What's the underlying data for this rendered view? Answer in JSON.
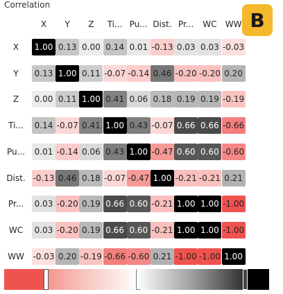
{
  "panel": {
    "title": "Correlation",
    "badge": "B"
  },
  "matrix": {
    "labels": [
      "X",
      "Y",
      "Z",
      "Ti...",
      "Pu...",
      "Dist.",
      "Pr...",
      "WC",
      "WW"
    ],
    "values": [
      [
        "1.00",
        "0.13",
        "0.00",
        "0.14",
        "0.01",
        "-0.13",
        "0.03",
        "0.03",
        "-0.03"
      ],
      [
        "0.13",
        "1.00",
        "0.11",
        "-0.07",
        "-0.14",
        "0.46",
        "-0.20",
        "-0.20",
        "0.20"
      ],
      [
        "0.00",
        "0.11",
        "1.00",
        "0.41",
        "0.06",
        "0.18",
        "0.19",
        "0.19",
        "-0.19"
      ],
      [
        "0.14",
        "-0.07",
        "0.41",
        "1.00",
        "0.43",
        "-0.07",
        "0.66",
        "0.66",
        "-0.66"
      ],
      [
        "0.01",
        "-0.14",
        "0.06",
        "0.43",
        "1.00",
        "-0.47",
        "0.60",
        "0.60",
        "-0.60"
      ],
      [
        "-0.13",
        "0.46",
        "0.18",
        "-0.07",
        "-0.47",
        "1.00",
        "-0.21",
        "-0.21",
        "0.21"
      ],
      [
        "0.03",
        "-0.20",
        "0.19",
        "0.66",
        "0.60",
        "-0.21",
        "1.00",
        "1.00",
        "-1.00"
      ],
      [
        "0.03",
        "-0.20",
        "0.19",
        "0.66",
        "0.60",
        "-0.21",
        "1.00",
        "1.00",
        "-1.00"
      ],
      [
        "-0.03",
        "0.20",
        "-0.19",
        "-0.66",
        "-0.60",
        "0.21",
        "-1.00",
        "-1.00",
        "1.00"
      ]
    ]
  },
  "colors": {
    "positive": "#000000",
    "negative": "#ef5350",
    "neutral": "#ffffff"
  },
  "color_scale": {
    "min": -1.0,
    "max": 1.0
  }
}
